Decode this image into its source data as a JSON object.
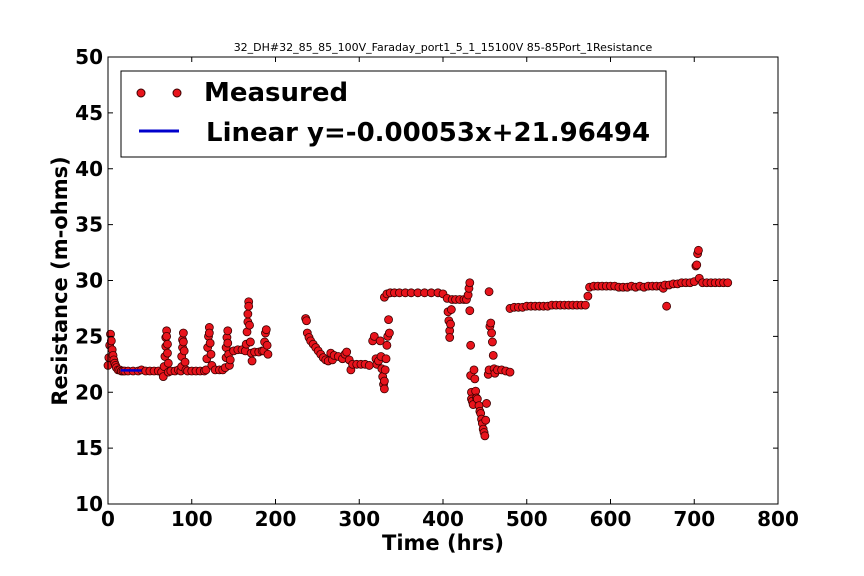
{
  "chart_data": {
    "type": "scatter",
    "title": "32_DH#32_85_85_100V_Faraday_port1_5_1_15100V 85-85Port_1Resistance",
    "xlabel": "Time (hrs)",
    "ylabel": "Resistance (m-ohms)",
    "xlim": [
      0,
      800
    ],
    "ylim": [
      10,
      50
    ],
    "xticks": [
      "0",
      "100",
      "200",
      "300",
      "400",
      "500",
      "600",
      "700",
      "800"
    ],
    "yticks": [
      "10",
      "15",
      "20",
      "25",
      "30",
      "35",
      "40",
      "45",
      "50"
    ],
    "grid": false,
    "legend_position": "top-left",
    "colors": {
      "measured_fill": "#e8141c",
      "measured_edge": "#3a0000",
      "linear": "#0000cc"
    },
    "series": [
      {
        "name": "Measured",
        "kind": "points",
        "points": [
          [
            0,
            22.4
          ],
          [
            1,
            23.1
          ],
          [
            2,
            24.2
          ],
          [
            3,
            25.2
          ],
          [
            4,
            24.6
          ],
          [
            5,
            23.8
          ],
          [
            6,
            23.3
          ],
          [
            7,
            22.9
          ],
          [
            8,
            22.6
          ],
          [
            9,
            22.4
          ],
          [
            10,
            22.2
          ],
          [
            12,
            22.0
          ],
          [
            14,
            22.0
          ],
          [
            16,
            21.9
          ],
          [
            18,
            21.9
          ],
          [
            20,
            21.9
          ],
          [
            24,
            21.9
          ],
          [
            30,
            21.9
          ],
          [
            36,
            21.9
          ],
          [
            40,
            22.0
          ],
          [
            45,
            21.9
          ],
          [
            50,
            21.9
          ],
          [
            55,
            21.9
          ],
          [
            60,
            21.9
          ],
          [
            64,
            21.8
          ],
          [
            66,
            21.4
          ],
          [
            67,
            22.3
          ],
          [
            68,
            23.2
          ],
          [
            69,
            24.1
          ],
          [
            69,
            24.9
          ],
          [
            70,
            25.5
          ],
          [
            70,
            25.0
          ],
          [
            71,
            24.3
          ],
          [
            71,
            23.5
          ],
          [
            72,
            22.6
          ],
          [
            72,
            21.8
          ],
          [
            75,
            21.9
          ],
          [
            80,
            21.9
          ],
          [
            84,
            22.0
          ],
          [
            87,
            21.9
          ],
          [
            88,
            22.3
          ],
          [
            88,
            23.2
          ],
          [
            89,
            24.0
          ],
          [
            89,
            24.7
          ],
          [
            90,
            25.3
          ],
          [
            90,
            24.5
          ],
          [
            91,
            23.7
          ],
          [
            92,
            22.7
          ],
          [
            93,
            22.0
          ],
          [
            95,
            21.9
          ],
          [
            100,
            21.9
          ],
          [
            105,
            21.9
          ],
          [
            110,
            21.9
          ],
          [
            115,
            21.9
          ],
          [
            117,
            22.0
          ],
          [
            118,
            23.0
          ],
          [
            119,
            24.0
          ],
          [
            120,
            25.0
          ],
          [
            121,
            25.8
          ],
          [
            121,
            25.3
          ],
          [
            122,
            24.4
          ],
          [
            123,
            23.4
          ],
          [
            124,
            22.4
          ],
          [
            128,
            22.0
          ],
          [
            133,
            22.0
          ],
          [
            137,
            22.0
          ],
          [
            140,
            22.2
          ],
          [
            141,
            23.1
          ],
          [
            141,
            24.0
          ],
          [
            142,
            24.9
          ],
          [
            143,
            25.5
          ],
          [
            143,
            24.4
          ],
          [
            144,
            23.4
          ],
          [
            145,
            22.4
          ],
          [
            146,
            22.9
          ],
          [
            150,
            23.7
          ],
          [
            155,
            23.8
          ],
          [
            160,
            23.8
          ],
          [
            164,
            23.7
          ],
          [
            165,
            24.3
          ],
          [
            166,
            25.4
          ],
          [
            167,
            26.3
          ],
          [
            167,
            27.0
          ],
          [
            168,
            28.1
          ],
          [
            168,
            27.7
          ],
          [
            169,
            26.0
          ],
          [
            170,
            24.5
          ],
          [
            171,
            23.5
          ],
          [
            172,
            22.8
          ],
          [
            175,
            23.6
          ],
          [
            180,
            23.6
          ],
          [
            184,
            23.7
          ],
          [
            186,
            23.7
          ],
          [
            187,
            24.5
          ],
          [
            188,
            25.3
          ],
          [
            189,
            25.6
          ],
          [
            190,
            24.2
          ],
          [
            191,
            23.4
          ],
          [
            236,
            26.6
          ],
          [
            237,
            26.4
          ],
          [
            238,
            25.3
          ],
          [
            240,
            24.9
          ],
          [
            242,
            24.6
          ],
          [
            245,
            24.3
          ],
          [
            248,
            24.0
          ],
          [
            251,
            23.7
          ],
          [
            254,
            23.4
          ],
          [
            257,
            23.1
          ],
          [
            260,
            22.9
          ],
          [
            263,
            22.8
          ],
          [
            266,
            23.5
          ],
          [
            268,
            22.9
          ],
          [
            270,
            23.3
          ],
          [
            275,
            23.2
          ],
          [
            280,
            23.0
          ],
          [
            283,
            23.4
          ],
          [
            285,
            23.6
          ],
          [
            288,
            22.9
          ],
          [
            290,
            22.0
          ],
          [
            292,
            22.5
          ],
          [
            297,
            22.5
          ],
          [
            302,
            22.5
          ],
          [
            307,
            22.5
          ],
          [
            312,
            22.4
          ],
          [
            316,
            24.6
          ],
          [
            318,
            25.0
          ],
          [
            320,
            23.0
          ],
          [
            321,
            22.5
          ],
          [
            323,
            22.8
          ],
          [
            325,
            24.6
          ],
          [
            326,
            23.2
          ],
          [
            327,
            22.1
          ],
          [
            328,
            21.4
          ],
          [
            329,
            20.7
          ],
          [
            330,
            20.3
          ],
          [
            330,
            21.0
          ],
          [
            331,
            22.0
          ],
          [
            332,
            23.0
          ],
          [
            333,
            24.2
          ],
          [
            334,
            25.0
          ],
          [
            335,
            26.5
          ],
          [
            336,
            25.3
          ],
          [
            330,
            28.5
          ],
          [
            333,
            28.8
          ],
          [
            337,
            28.9
          ],
          [
            342,
            28.9
          ],
          [
            348,
            28.9
          ],
          [
            355,
            28.9
          ],
          [
            362,
            28.9
          ],
          [
            370,
            28.9
          ],
          [
            378,
            28.9
          ],
          [
            386,
            28.9
          ],
          [
            394,
            28.9
          ],
          [
            400,
            28.8
          ],
          [
            405,
            28.4
          ],
          [
            406,
            27.2
          ],
          [
            407,
            26.4
          ],
          [
            408,
            25.5
          ],
          [
            408,
            24.9
          ],
          [
            409,
            26.1
          ],
          [
            410,
            27.4
          ],
          [
            411,
            28.3
          ],
          [
            415,
            28.3
          ],
          [
            420,
            28.3
          ],
          [
            425,
            28.3
          ],
          [
            428,
            28.3
          ],
          [
            430,
            28.7
          ],
          [
            431,
            29.3
          ],
          [
            432,
            29.8
          ],
          [
            432,
            27.3
          ],
          [
            433,
            24.2
          ],
          [
            433,
            21.5
          ],
          [
            434,
            20.0
          ],
          [
            434,
            19.4
          ],
          [
            435,
            19.2
          ],
          [
            436,
            18.9
          ],
          [
            437,
            22.0
          ],
          [
            438,
            21.2
          ],
          [
            439,
            20.1
          ],
          [
            440,
            19.5
          ],
          [
            441,
            19.4
          ],
          [
            443,
            18.8
          ],
          [
            444,
            18.3
          ],
          [
            445,
            18.1
          ],
          [
            446,
            17.6
          ],
          [
            447,
            17.2
          ],
          [
            448,
            16.7
          ],
          [
            449,
            16.4
          ],
          [
            450,
            16.1
          ],
          [
            451,
            17.5
          ],
          [
            452,
            19.0
          ],
          [
            454,
            21.6
          ],
          [
            455,
            22.0
          ],
          [
            456,
            25.9
          ],
          [
            457,
            26.2
          ],
          [
            458,
            25.3
          ],
          [
            459,
            24.5
          ],
          [
            460,
            23.3
          ],
          [
            461,
            22.1
          ],
          [
            462,
            21.7
          ],
          [
            465,
            22.0
          ],
          [
            470,
            22.0
          ],
          [
            475,
            21.9
          ],
          [
            480,
            21.8
          ],
          [
            455,
            29.0
          ],
          [
            480,
            27.5
          ],
          [
            485,
            27.6
          ],
          [
            490,
            27.6
          ],
          [
            495,
            27.6
          ],
          [
            500,
            27.7
          ],
          [
            505,
            27.7
          ],
          [
            510,
            27.7
          ],
          [
            515,
            27.7
          ],
          [
            520,
            27.7
          ],
          [
            525,
            27.7
          ],
          [
            530,
            27.8
          ],
          [
            535,
            27.8
          ],
          [
            540,
            27.8
          ],
          [
            545,
            27.8
          ],
          [
            550,
            27.8
          ],
          [
            555,
            27.8
          ],
          [
            560,
            27.8
          ],
          [
            565,
            27.8
          ],
          [
            570,
            27.8
          ],
          [
            573,
            28.6
          ],
          [
            575,
            29.4
          ],
          [
            580,
            29.5
          ],
          [
            585,
            29.5
          ],
          [
            590,
            29.5
          ],
          [
            595,
            29.5
          ],
          [
            600,
            29.5
          ],
          [
            605,
            29.5
          ],
          [
            610,
            29.4
          ],
          [
            615,
            29.4
          ],
          [
            620,
            29.4
          ],
          [
            625,
            29.5
          ],
          [
            630,
            29.4
          ],
          [
            635,
            29.5
          ],
          [
            640,
            29.4
          ],
          [
            645,
            29.5
          ],
          [
            650,
            29.5
          ],
          [
            655,
            29.5
          ],
          [
            660,
            29.5
          ],
          [
            663,
            29.3
          ],
          [
            665,
            29.6
          ],
          [
            667,
            27.7
          ],
          [
            670,
            29.6
          ],
          [
            675,
            29.7
          ],
          [
            680,
            29.7
          ],
          [
            685,
            29.8
          ],
          [
            690,
            29.8
          ],
          [
            695,
            29.8
          ],
          [
            700,
            29.9
          ],
          [
            702,
            31.3
          ],
          [
            703,
            31.4
          ],
          [
            704,
            32.4
          ],
          [
            705,
            32.7
          ],
          [
            706,
            30.2
          ],
          [
            710,
            29.8
          ],
          [
            715,
            29.8
          ],
          [
            720,
            29.8
          ],
          [
            725,
            29.8
          ],
          [
            730,
            29.8
          ],
          [
            735,
            29.8
          ],
          [
            740,
            29.8
          ]
        ]
      },
      {
        "name": "Linear y=-0.00053x+21.96494",
        "kind": "line",
        "points": [
          [
            15,
            21.957
          ],
          [
            40,
            21.944
          ]
        ]
      }
    ]
  }
}
